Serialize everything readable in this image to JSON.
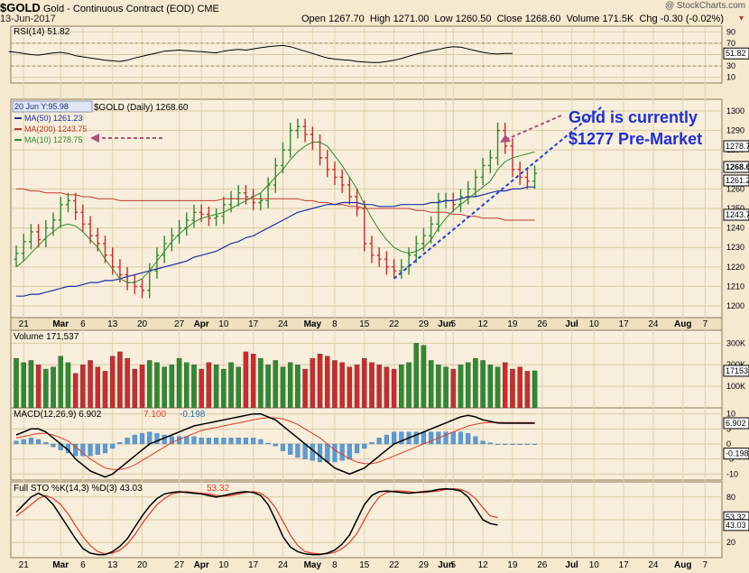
{
  "header": {
    "symbol": "$GOLD",
    "name": "Gold - Continuous Contract (EOD)",
    "exchange": "CME",
    "date": "13-Jun-2017",
    "open_label": "Open",
    "open": "1267.70",
    "high_label": "High",
    "high": "1271.00",
    "low_label": "Low",
    "low": "1260.50",
    "close_label": "Close",
    "close": "1268.60",
    "volume_label": "Volume",
    "volume": "171.5K",
    "chg_label": "Chg",
    "chg": "-0.30 (-0.02%)",
    "logo": "@ StockCharts.com"
  },
  "annotation": {
    "line1": "Gold is currently",
    "line2": "$1277 Pre-Market"
  },
  "colors": {
    "up": "#2e8b2e",
    "down": "#cc2b2b",
    "ma50": "#1c2fa8",
    "ma200": "#c0392b",
    "ma10": "#2e8b2e",
    "annotation": "#1f2fd6",
    "arrow": "#b0507a",
    "trend": "#1f3fd6"
  },
  "chart_data": [
    {
      "type": "line",
      "panel": "rsi",
      "legend": "RSI(14) 51.82",
      "ylim": [
        0,
        100
      ],
      "ticks": [
        90,
        70,
        50,
        30,
        10
      ],
      "overbought": 70,
      "oversold": 30,
      "last_label": "51.82",
      "values": [
        55,
        54,
        52,
        50,
        49,
        51,
        53,
        54,
        52,
        48,
        46,
        44,
        42,
        40,
        39,
        38,
        40,
        44,
        47,
        50,
        53,
        56,
        57,
        58,
        57,
        56,
        55,
        54,
        53,
        56,
        58,
        59,
        58,
        60,
        62,
        64,
        65,
        66,
        64,
        60,
        56,
        52,
        48,
        44,
        42,
        41,
        40,
        38,
        37,
        36,
        36,
        38,
        40,
        43,
        47,
        51,
        54,
        57,
        59,
        62,
        64,
        63,
        60,
        57,
        54,
        52,
        51,
        52,
        52
      ]
    },
    {
      "type": "candlestick",
      "panel": "price",
      "legend_title": "$GOLD (Daily) 1268.60",
      "overlay_tag": "20 Jun Y:95.98",
      "ylim": [
        1194,
        1306
      ],
      "ticks": [
        1300,
        1290,
        1280,
        1270,
        1260,
        1250,
        1240,
        1230,
        1220,
        1210,
        1200
      ],
      "price_labels": [
        "1278.75",
        "1268.60",
        "1261.23",
        "1243.75"
      ],
      "x_labels": [
        {
          "i": 1,
          "t": "21"
        },
        {
          "i": 6,
          "t": "Mar"
        },
        {
          "i": 9,
          "t": "6"
        },
        {
          "i": 13,
          "t": "13"
        },
        {
          "i": 17,
          "t": "20"
        },
        {
          "i": 22,
          "t": "27"
        },
        {
          "i": 25,
          "t": "Apr"
        },
        {
          "i": 28,
          "t": "10"
        },
        {
          "i": 32,
          "t": "17"
        },
        {
          "i": 36,
          "t": "24"
        },
        {
          "i": 40,
          "t": "May"
        },
        {
          "i": 43,
          "t": "8"
        },
        {
          "i": 47,
          "t": "15"
        },
        {
          "i": 51,
          "t": "22"
        },
        {
          "i": 55,
          "t": "29"
        },
        {
          "i": 58,
          "t": "Jun"
        },
        {
          "i": 59,
          "t": "5"
        },
        {
          "i": 63,
          "t": "12"
        },
        {
          "i": 67,
          "t": "19"
        },
        {
          "i": 71,
          "t": "26"
        },
        {
          "i": 75,
          "t": "Jul"
        },
        {
          "i": 78,
          "t": "10"
        },
        {
          "i": 82,
          "t": "17"
        },
        {
          "i": 86,
          "t": "24"
        },
        {
          "i": 90,
          "t": "Aug"
        },
        {
          "i": 93,
          "t": "7"
        }
      ],
      "ma_legend": [
        {
          "name": "MA(50) 1261.23",
          "color": "#1c2fa8"
        },
        {
          "name": "MA(200) 1243.75",
          "color": "#c0392b"
        },
        {
          "name": "MA(10) 1278.75",
          "color": "#2e8b2e"
        }
      ],
      "close": [
        1227,
        1233,
        1238,
        1234,
        1240,
        1244,
        1252,
        1254,
        1248,
        1242,
        1236,
        1232,
        1226,
        1220,
        1216,
        1212,
        1210,
        1208,
        1218,
        1226,
        1232,
        1236,
        1240,
        1244,
        1248,
        1247,
        1245,
        1246,
        1252,
        1255,
        1258,
        1256,
        1253,
        1254,
        1262,
        1272,
        1280,
        1290,
        1292,
        1288,
        1284,
        1276,
        1270,
        1266,
        1262,
        1256,
        1250,
        1232,
        1226,
        1224,
        1220,
        1218,
        1220,
        1226,
        1232,
        1236,
        1242,
        1254,
        1254,
        1252,
        1256,
        1260,
        1266,
        1272,
        1276,
        1290,
        1282,
        1270,
        1266,
        1264,
        1268
      ],
      "ma50": [
        1205,
        1205,
        1206,
        1206,
        1207,
        1208,
        1209,
        1210,
        1210,
        1211,
        1212,
        1212,
        1213,
        1213,
        1214,
        1215,
        1216,
        1217,
        1218,
        1219,
        1220,
        1221,
        1222,
        1223,
        1225,
        1226,
        1227,
        1228,
        1230,
        1232,
        1233,
        1235,
        1236,
        1238,
        1240,
        1242,
        1244,
        1246,
        1248,
        1249,
        1250,
        1251,
        1252,
        1252,
        1253,
        1253,
        1253,
        1252,
        1252,
        1251,
        1251,
        1251,
        1252,
        1252,
        1252,
        1252,
        1253,
        1253,
        1254,
        1254,
        1255,
        1256,
        1256,
        1257,
        1258,
        1259,
        1259,
        1260,
        1260,
        1261,
        1261
      ],
      "ma200": [
        1260,
        1260,
        1259,
        1259,
        1258,
        1258,
        1258,
        1257,
        1257,
        1256,
        1256,
        1255,
        1255,
        1255,
        1254,
        1254,
        1254,
        1254,
        1254,
        1254,
        1254,
        1254,
        1254,
        1254,
        1254,
        1254,
        1254,
        1254,
        1255,
        1255,
        1255,
        1255,
        1255,
        1255,
        1255,
        1255,
        1255,
        1255,
        1255,
        1254,
        1254,
        1253,
        1253,
        1252,
        1252,
        1251,
        1251,
        1250,
        1250,
        1250,
        1250,
        1250,
        1250,
        1250,
        1249,
        1249,
        1248,
        1248,
        1248,
        1247,
        1247,
        1246,
        1246,
        1245,
        1245,
        1245,
        1244,
        1244,
        1244,
        1244,
        1244
      ],
      "ma10": [
        1220,
        1223,
        1227,
        1231,
        1235,
        1238,
        1241,
        1242,
        1241,
        1238,
        1234,
        1230,
        1224,
        1219,
        1214,
        1212,
        1212,
        1214,
        1218,
        1223,
        1228,
        1233,
        1237,
        1240,
        1243,
        1245,
        1246,
        1247,
        1248,
        1250,
        1252,
        1254,
        1256,
        1258,
        1262,
        1266,
        1270,
        1275,
        1279,
        1282,
        1284,
        1284,
        1282,
        1277,
        1272,
        1266,
        1260,
        1252,
        1245,
        1239,
        1234,
        1230,
        1228,
        1227,
        1228,
        1230,
        1234,
        1240,
        1245,
        1249,
        1252,
        1255,
        1258,
        1261,
        1264,
        1270,
        1274,
        1276,
        1277,
        1278,
        1279
      ]
    },
    {
      "type": "bar",
      "panel": "volume",
      "legend": "Volume 171,537",
      "ylim": [
        0,
        360
      ],
      "ticks": [
        {
          "v": 300,
          "t": "300K"
        },
        {
          "v": 200,
          "t": "200K"
        },
        {
          "v": 100,
          "t": "100K"
        }
      ],
      "last_label": "171537",
      "values": [
        230,
        210,
        220,
        200,
        180,
        190,
        240,
        210,
        160,
        200,
        220,
        190,
        170,
        240,
        260,
        230,
        180,
        200,
        220,
        210,
        190,
        200,
        230,
        210,
        200,
        180,
        210,
        200,
        180,
        210,
        190,
        260,
        250,
        230,
        200,
        220,
        190,
        210,
        200,
        180,
        230,
        250,
        240,
        220,
        210,
        190,
        200,
        230,
        210,
        200,
        190,
        180,
        200,
        210,
        300,
        290,
        220,
        200,
        190,
        180,
        200,
        210,
        230,
        220,
        200,
        190,
        210,
        180,
        190,
        170,
        172
      ]
    },
    {
      "type": "line",
      "panel": "macd",
      "legend_macd": "MACD(12,26,9) 6.902",
      "legend_signal": "7.100",
      "legend_hist": "-0.198",
      "ylim": [
        -12,
        12
      ],
      "ticks": [
        10,
        5,
        0,
        -5,
        -10
      ],
      "last_labels": [
        "6.902",
        "-0.198"
      ],
      "macd": [
        3,
        4,
        5,
        5,
        4,
        2,
        0,
        -2,
        -5,
        -7,
        -9,
        -10,
        -11,
        -10,
        -8,
        -6,
        -4,
        -2,
        0,
        1,
        2,
        3,
        4,
        5,
        6,
        6.5,
        7,
        7.5,
        8,
        8.5,
        9,
        9.5,
        10,
        10,
        9,
        8,
        6,
        4,
        2,
        0,
        -2,
        -4,
        -6,
        -8,
        -9,
        -10,
        -9,
        -8,
        -6,
        -4,
        -2,
        0,
        1,
        2,
        3,
        4,
        5,
        6,
        7,
        8,
        9,
        9.5,
        9,
        8,
        7.5,
        7,
        6.9,
        6.9,
        6.9,
        6.9,
        6.9
      ],
      "signal": [
        2,
        2.5,
        3,
        3.5,
        3.5,
        3,
        2,
        1,
        -1,
        -3,
        -5,
        -6.5,
        -8,
        -8.5,
        -8.5,
        -8,
        -7,
        -5.5,
        -4,
        -2.5,
        -1,
        0.5,
        1.5,
        2.5,
        3.5,
        4.5,
        5,
        5.5,
        6,
        6.5,
        7,
        7.5,
        8,
        8.5,
        8.7,
        8.7,
        8.3,
        7.5,
        6.5,
        5,
        3.5,
        2,
        0,
        -2,
        -3.5,
        -5,
        -6,
        -6.5,
        -6.5,
        -6,
        -5,
        -4,
        -3,
        -2,
        -1,
        0,
        1,
        2,
        3,
        4,
        5,
        6,
        6.5,
        7,
        7.1,
        7.2,
        7.1,
        7.1,
        7.1,
        7.1,
        7.1
      ],
      "hist": [
        1,
        1.5,
        2,
        1.5,
        0.5,
        -1,
        -2,
        -3,
        -4,
        -4,
        -4,
        -3.5,
        -3,
        -1.5,
        0.5,
        2,
        3,
        3.5,
        4,
        3.5,
        3,
        2.5,
        2.5,
        2.5,
        2.5,
        2,
        2,
        2,
        2,
        2,
        2,
        2,
        2,
        1.5,
        0.3,
        -0.7,
        -2.3,
        -3.5,
        -4.5,
        -5,
        -5.5,
        -6,
        -6,
        -6,
        -5.5,
        -5,
        -3,
        -1.5,
        0.5,
        2,
        3,
        4,
        4,
        4,
        4,
        4,
        4,
        4,
        4,
        4,
        4,
        3.5,
        2.5,
        1,
        0.4,
        -0.2,
        -0.2,
        -0.2,
        -0.2,
        -0.2,
        -0.2
      ]
    },
    {
      "type": "line",
      "panel": "sto",
      "legend_k": "Full STO %K(14,3) %D(3) 43.03",
      "legend_d": "53.32",
      "ylim": [
        0,
        100
      ],
      "ticks": [
        80,
        50,
        20
      ],
      "last_labels": [
        "53.32",
        "43.03"
      ],
      "k": [
        60,
        70,
        80,
        85,
        80,
        70,
        55,
        40,
        25,
        12,
        6,
        4,
        4,
        8,
        15,
        25,
        40,
        55,
        68,
        78,
        84,
        86,
        87,
        86,
        85,
        84,
        82,
        80,
        82,
        84,
        86,
        87,
        86,
        82,
        70,
        50,
        28,
        14,
        8,
        5,
        4,
        4,
        6,
        10,
        18,
        30,
        50,
        70,
        82,
        87,
        88,
        87,
        86,
        85,
        86,
        87,
        88,
        90,
        91,
        90,
        88,
        80,
        65,
        50,
        45,
        43
      ],
      "d": [
        55,
        62,
        70,
        78,
        82,
        78,
        70,
        58,
        42,
        28,
        16,
        8,
        5,
        6,
        10,
        18,
        30,
        45,
        58,
        70,
        78,
        84,
        86,
        87,
        86,
        85,
        84,
        82,
        81,
        82,
        84,
        86,
        87,
        85,
        78,
        66,
        48,
        30,
        16,
        8,
        6,
        5,
        5,
        7,
        12,
        20,
        32,
        50,
        67,
        80,
        86,
        88,
        88,
        87,
        86,
        86,
        87,
        88,
        90,
        91,
        90,
        86,
        78,
        66,
        55,
        53
      ]
    }
  ]
}
